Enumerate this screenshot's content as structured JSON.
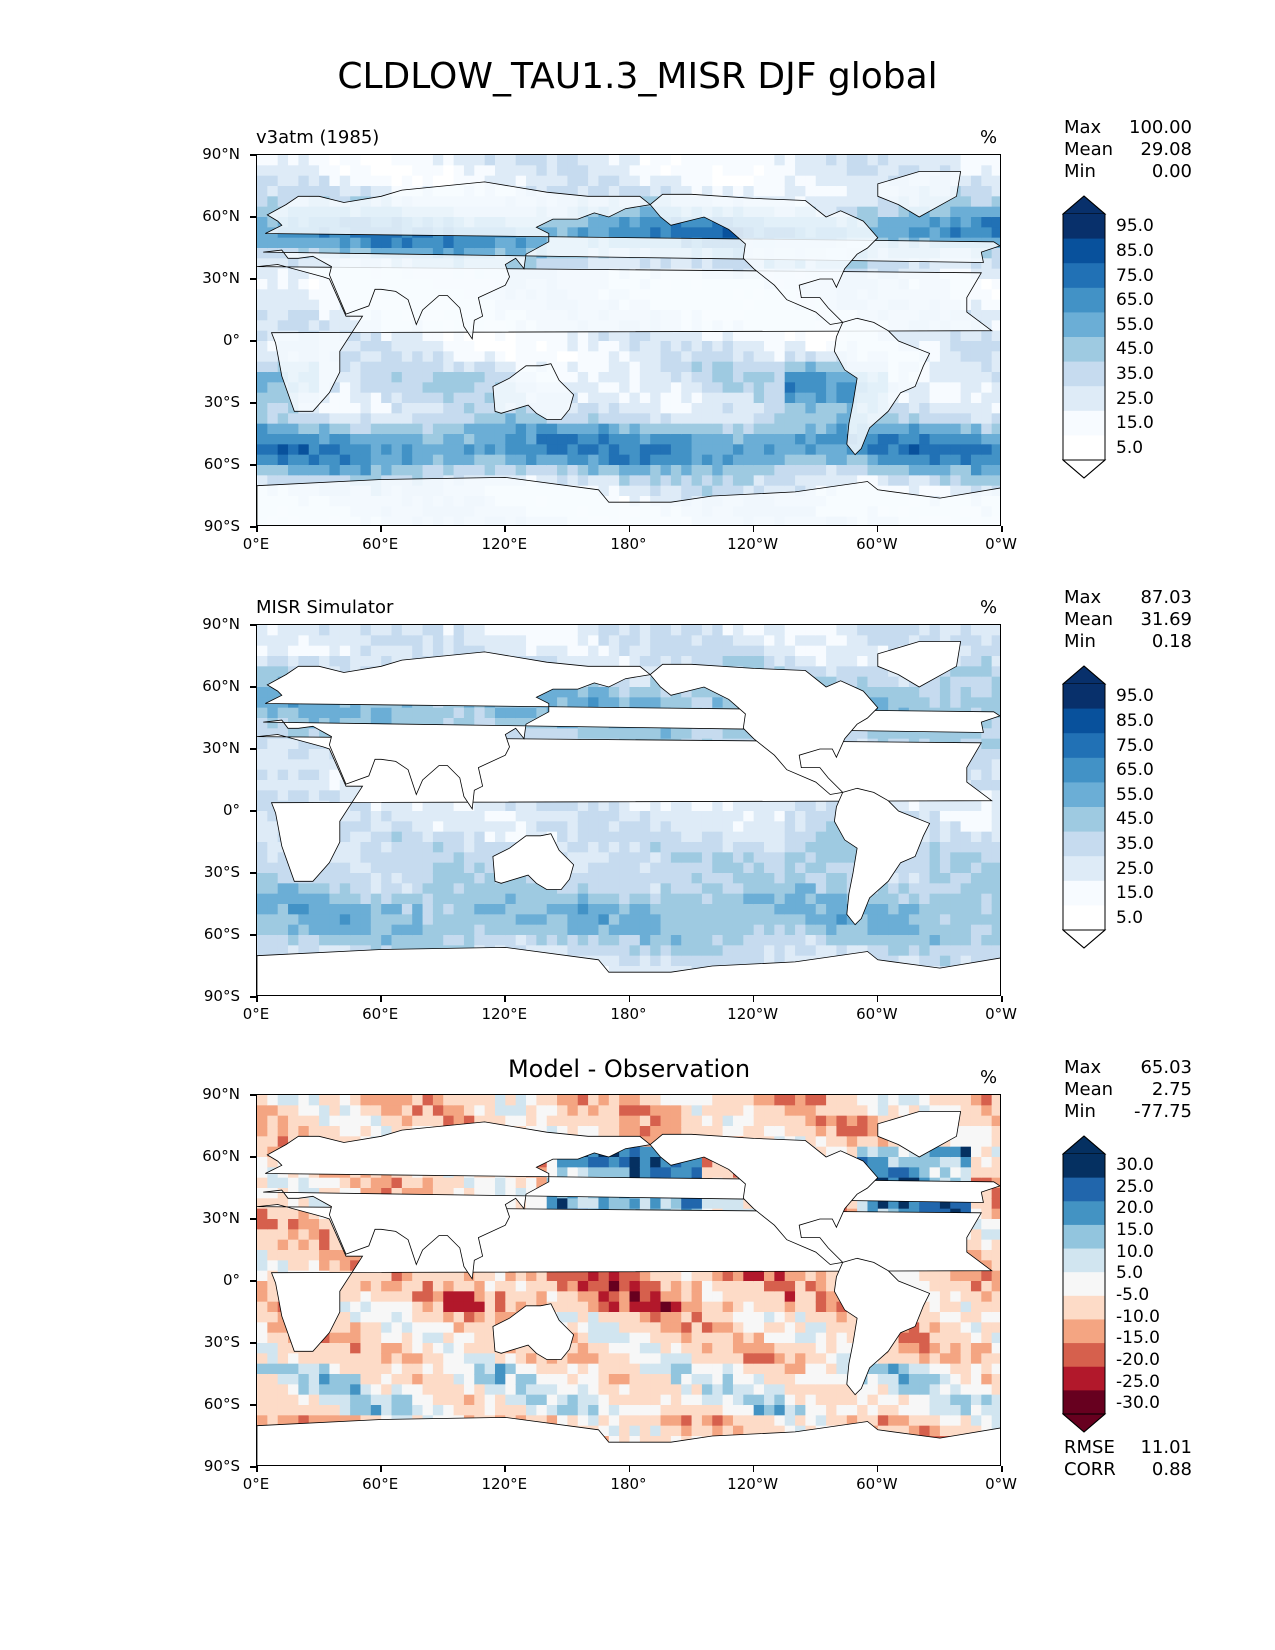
{
  "title": "CLDLOW_TAU1.3_MISR DJF global",
  "lat_labels": [
    "90°N",
    "60°N",
    "30°N",
    "0°",
    "30°S",
    "60°S",
    "90°S"
  ],
  "lon_labels": [
    "0°E",
    "60°E",
    "120°E",
    "180°",
    "120°W",
    "60°W",
    "0°W"
  ],
  "panels": [
    {
      "name": "v3atm (1985)",
      "units": "%",
      "stats": {
        "max_label": "Max",
        "max": "100.00",
        "mean_label": "Mean",
        "mean": "29.08",
        "min_label": "Min",
        "min": "0.00"
      },
      "colorbar_labels": [
        "95.0",
        "85.0",
        "75.0",
        "65.0",
        "55.0",
        "45.0",
        "35.0",
        "25.0",
        "15.0",
        "5.0"
      ],
      "colors": [
        "#08306b",
        "#08519c",
        "#2171b5",
        "#4292c6",
        "#6baed6",
        "#9ecae1",
        "#c6dbef",
        "#deebf7",
        "#f7fbff",
        "#ffffff"
      ]
    },
    {
      "name": "MISR Simulator",
      "units": "%",
      "stats": {
        "max_label": "Max",
        "max": "87.03",
        "mean_label": "Mean",
        "mean": "31.69",
        "min_label": "Min",
        "min": "0.18"
      },
      "colorbar_labels": [
        "95.0",
        "85.0",
        "75.0",
        "65.0",
        "55.0",
        "45.0",
        "35.0",
        "25.0",
        "15.0",
        "5.0"
      ],
      "colors": [
        "#08306b",
        "#08519c",
        "#2171b5",
        "#4292c6",
        "#6baed6",
        "#9ecae1",
        "#c6dbef",
        "#deebf7",
        "#f7fbff",
        "#ffffff"
      ]
    },
    {
      "name": "Model - Observation",
      "units": "%",
      "stats": {
        "max_label": "Max",
        "max": "65.03",
        "mean_label": "Mean",
        "mean": "2.75",
        "min_label": "Min",
        "min": "-77.75"
      },
      "colorbar_labels": [
        "30.0",
        "25.0",
        "20.0",
        "15.0",
        "10.0",
        "5.0",
        "-5.0",
        "-10.0",
        "-15.0",
        "-20.0",
        "-25.0",
        "-30.0"
      ],
      "colors": [
        "#053061",
        "#2166ac",
        "#4393c3",
        "#92c5de",
        "#d1e5f0",
        "#f7f7f7",
        "#fddbc7",
        "#f4a582",
        "#d6604d",
        "#b2182b",
        "#67001f"
      ],
      "extra": {
        "rmse_label": "RMSE",
        "rmse": "11.01",
        "corr_label": "CORR",
        "corr": "0.88"
      }
    }
  ]
}
